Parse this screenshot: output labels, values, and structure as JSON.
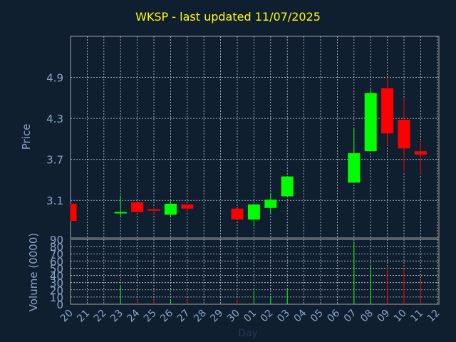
{
  "chart_data": {
    "type": "candlestick",
    "title": "WKSP - last updated 11/07/2025",
    "xlabel": "Day",
    "ylabel_price": "Price",
    "ylabel_volume": "Volume (0000)",
    "price_ticks": [
      "3.1",
      "3.7",
      "4.3",
      "4.9"
    ],
    "price_ylim": [
      2.55,
      5.5
    ],
    "volume_ticks": [
      "0",
      "10",
      "20",
      "30",
      "40",
      "50",
      "60",
      "70",
      "80",
      "90"
    ],
    "volume_ylim": [
      0,
      90
    ],
    "x_ticks": [
      "20",
      "21",
      "22",
      "23",
      "24",
      "25",
      "26",
      "27",
      "28",
      "29",
      "30",
      "01",
      "02",
      "03",
      "04",
      "05",
      "06",
      "07",
      "08",
      "09",
      "10",
      "11",
      "12"
    ],
    "grid": true,
    "colors": {
      "up": "#00ff00",
      "down": "#ff0000",
      "grid": "#c8c8c8",
      "axis": "#8aa3c6",
      "title": "#ffff00",
      "background": "#0f1f30"
    },
    "candles": [
      {
        "day": "20",
        "open": 3.05,
        "high": 3.05,
        "low": 2.8,
        "close": 2.8,
        "volume": 0
      },
      {
        "day": "23",
        "open": 2.93,
        "high": 3.17,
        "low": 2.85,
        "close": 2.93,
        "volume": 25
      },
      {
        "day": "24",
        "open": 3.07,
        "high": 3.07,
        "low": 2.93,
        "close": 2.93,
        "volume": 6
      },
      {
        "day": "25",
        "open": 2.97,
        "high": 3.0,
        "low": 2.9,
        "close": 2.95,
        "volume": 6
      },
      {
        "day": "26",
        "open": 2.89,
        "high": 3.12,
        "low": 2.87,
        "close": 3.05,
        "volume": 5
      },
      {
        "day": "27",
        "open": 3.04,
        "high": 3.05,
        "low": 2.94,
        "close": 2.98,
        "volume": 6
      },
      {
        "day": "30",
        "open": 2.98,
        "high": 2.98,
        "low": 2.82,
        "close": 2.82,
        "volume": 7
      },
      {
        "day": "01",
        "open": 2.82,
        "high": 3.05,
        "low": 2.72,
        "close": 3.04,
        "volume": 19
      },
      {
        "day": "02",
        "open": 2.99,
        "high": 3.21,
        "low": 2.9,
        "close": 3.11,
        "volume": 12
      },
      {
        "day": "03",
        "open": 3.16,
        "high": 3.46,
        "low": 3.16,
        "close": 3.45,
        "volume": 21
      },
      {
        "day": "07",
        "open": 3.36,
        "high": 4.15,
        "low": 3.36,
        "close": 3.79,
        "volume": 87
      },
      {
        "day": "08",
        "open": 3.82,
        "high": 4.75,
        "low": 3.82,
        "close": 4.67,
        "volume": 55
      },
      {
        "day": "09",
        "open": 4.74,
        "high": 4.9,
        "low": 3.9,
        "close": 4.08,
        "volume": 52
      },
      {
        "day": "10",
        "open": 4.28,
        "high": 4.58,
        "low": 3.52,
        "close": 3.86,
        "volume": 49
      },
      {
        "day": "11",
        "open": 3.82,
        "high": 3.97,
        "low": 3.48,
        "close": 3.77,
        "volume": 33
      }
    ]
  }
}
